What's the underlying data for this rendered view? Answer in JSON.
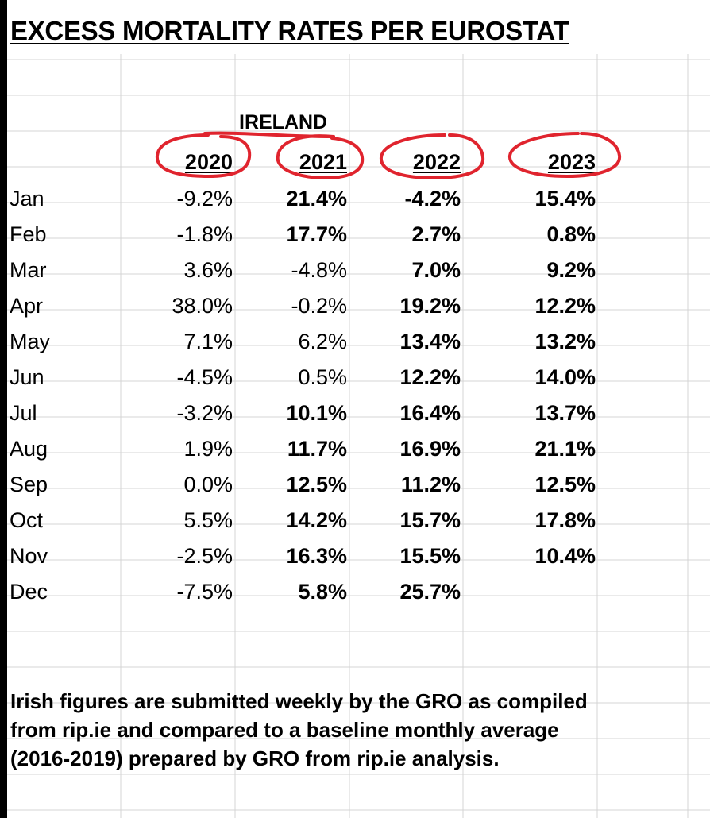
{
  "title": "EXCESS MORTALITY RATES PER EUROSTAT",
  "country": "IRELAND",
  "columns": [
    "2020",
    "2021",
    "2022",
    "2023"
  ],
  "rows": [
    {
      "month": "Jan",
      "values": [
        "-9.2%",
        "21.4%",
        "-4.2%",
        "15.4%"
      ],
      "bold": [
        false,
        true,
        true,
        true
      ]
    },
    {
      "month": "Feb",
      "values": [
        "-1.8%",
        "17.7%",
        "2.7%",
        "0.8%"
      ],
      "bold": [
        false,
        true,
        true,
        true
      ]
    },
    {
      "month": "Mar",
      "values": [
        "3.6%",
        "-4.8%",
        "7.0%",
        "9.2%"
      ],
      "bold": [
        false,
        false,
        true,
        true
      ]
    },
    {
      "month": "Apr",
      "values": [
        "38.0%",
        "-0.2%",
        "19.2%",
        "12.2%"
      ],
      "bold": [
        false,
        false,
        true,
        true
      ]
    },
    {
      "month": "May",
      "values": [
        "7.1%",
        "6.2%",
        "13.4%",
        "13.2%"
      ],
      "bold": [
        false,
        false,
        true,
        true
      ]
    },
    {
      "month": "Jun",
      "values": [
        "-4.5%",
        "0.5%",
        "12.2%",
        "14.0%"
      ],
      "bold": [
        false,
        false,
        true,
        true
      ]
    },
    {
      "month": "Jul",
      "values": [
        "-3.2%",
        "10.1%",
        "16.4%",
        "13.7%"
      ],
      "bold": [
        false,
        true,
        true,
        true
      ]
    },
    {
      "month": "Aug",
      "values": [
        "1.9%",
        "11.7%",
        "16.9%",
        "21.1%"
      ],
      "bold": [
        false,
        true,
        true,
        true
      ]
    },
    {
      "month": "Sep",
      "values": [
        "0.0%",
        "12.5%",
        "11.2%",
        "12.5%"
      ],
      "bold": [
        false,
        true,
        true,
        true
      ]
    },
    {
      "month": "Oct",
      "values": [
        "5.5%",
        "14.2%",
        "15.7%",
        "17.8%"
      ],
      "bold": [
        false,
        true,
        true,
        true
      ]
    },
    {
      "month": "Nov",
      "values": [
        "-2.5%",
        "16.3%",
        "15.5%",
        "10.4%"
      ],
      "bold": [
        false,
        true,
        true,
        true
      ]
    },
    {
      "month": "Dec",
      "values": [
        "-7.5%",
        "5.8%",
        "25.7%",
        ""
      ],
      "bold": [
        false,
        true,
        true,
        true
      ]
    }
  ],
  "note_lines": [
    "Irish figures are submitted weekly by the GRO as compiled",
    "from rip.ie and compared to a baseline monthly average",
    "(2016-2019) prepared by GRO from rip.ie analysis."
  ],
  "colors": {
    "annotation": "#e0242e",
    "gridline": "#d4d4d4",
    "text": "#000000"
  }
}
